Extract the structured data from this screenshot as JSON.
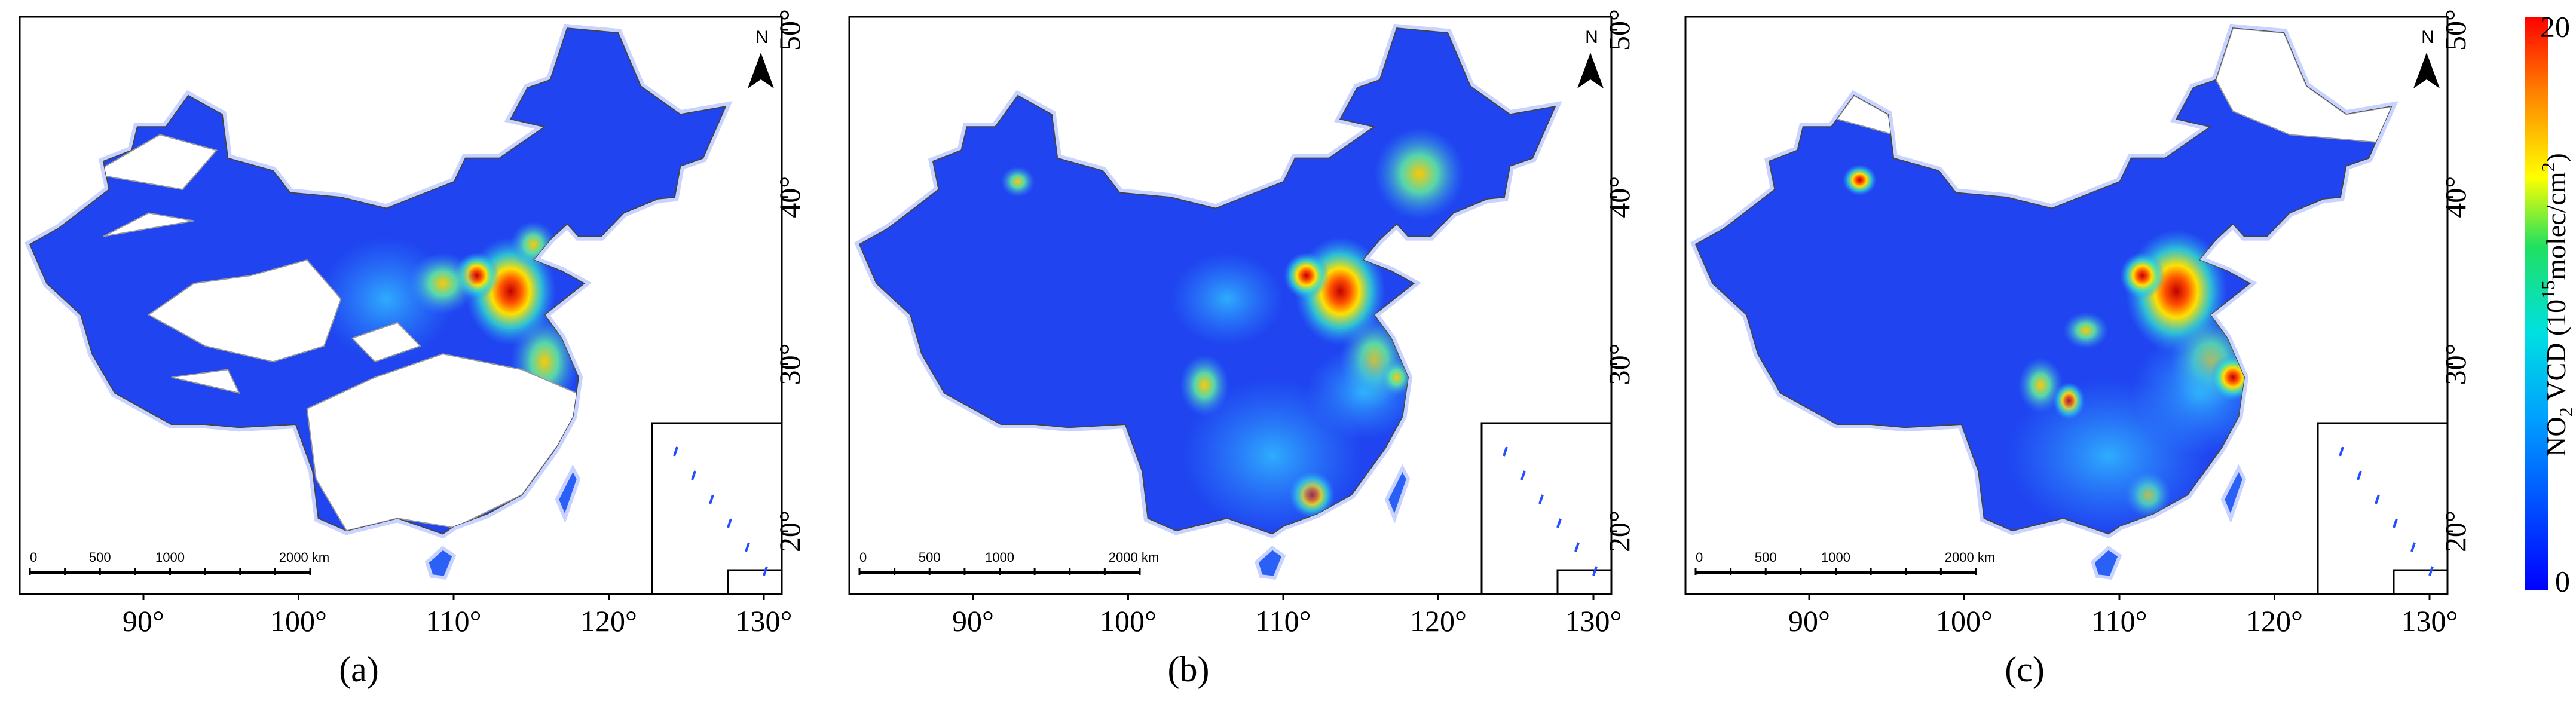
{
  "panels": [
    {
      "label": "(a)"
    },
    {
      "label": "(b)"
    },
    {
      "label": "(c)"
    }
  ],
  "map_axes": {
    "lon_ticks": [
      {
        "value": 90,
        "label": "90°"
      },
      {
        "value": 100,
        "label": "100°"
      },
      {
        "value": 110,
        "label": "110°"
      },
      {
        "value": 120,
        "label": "120°"
      },
      {
        "value": 130,
        "label": "130°"
      }
    ],
    "lat_ticks": [
      {
        "value": 20,
        "label": "20°"
      },
      {
        "value": 30,
        "label": "30°"
      },
      {
        "value": 40,
        "label": "40°"
      },
      {
        "value": 50,
        "label": "50°"
      }
    ],
    "north": "N",
    "scale_bar": [
      "0",
      "500",
      "1000",
      "2000 km"
    ]
  },
  "colorbar": {
    "label": [
      "NO",
      "2",
      " VCD (10",
      "15",
      "molec/cm",
      "2",
      ")"
    ],
    "min": 0,
    "max": 20
  }
}
